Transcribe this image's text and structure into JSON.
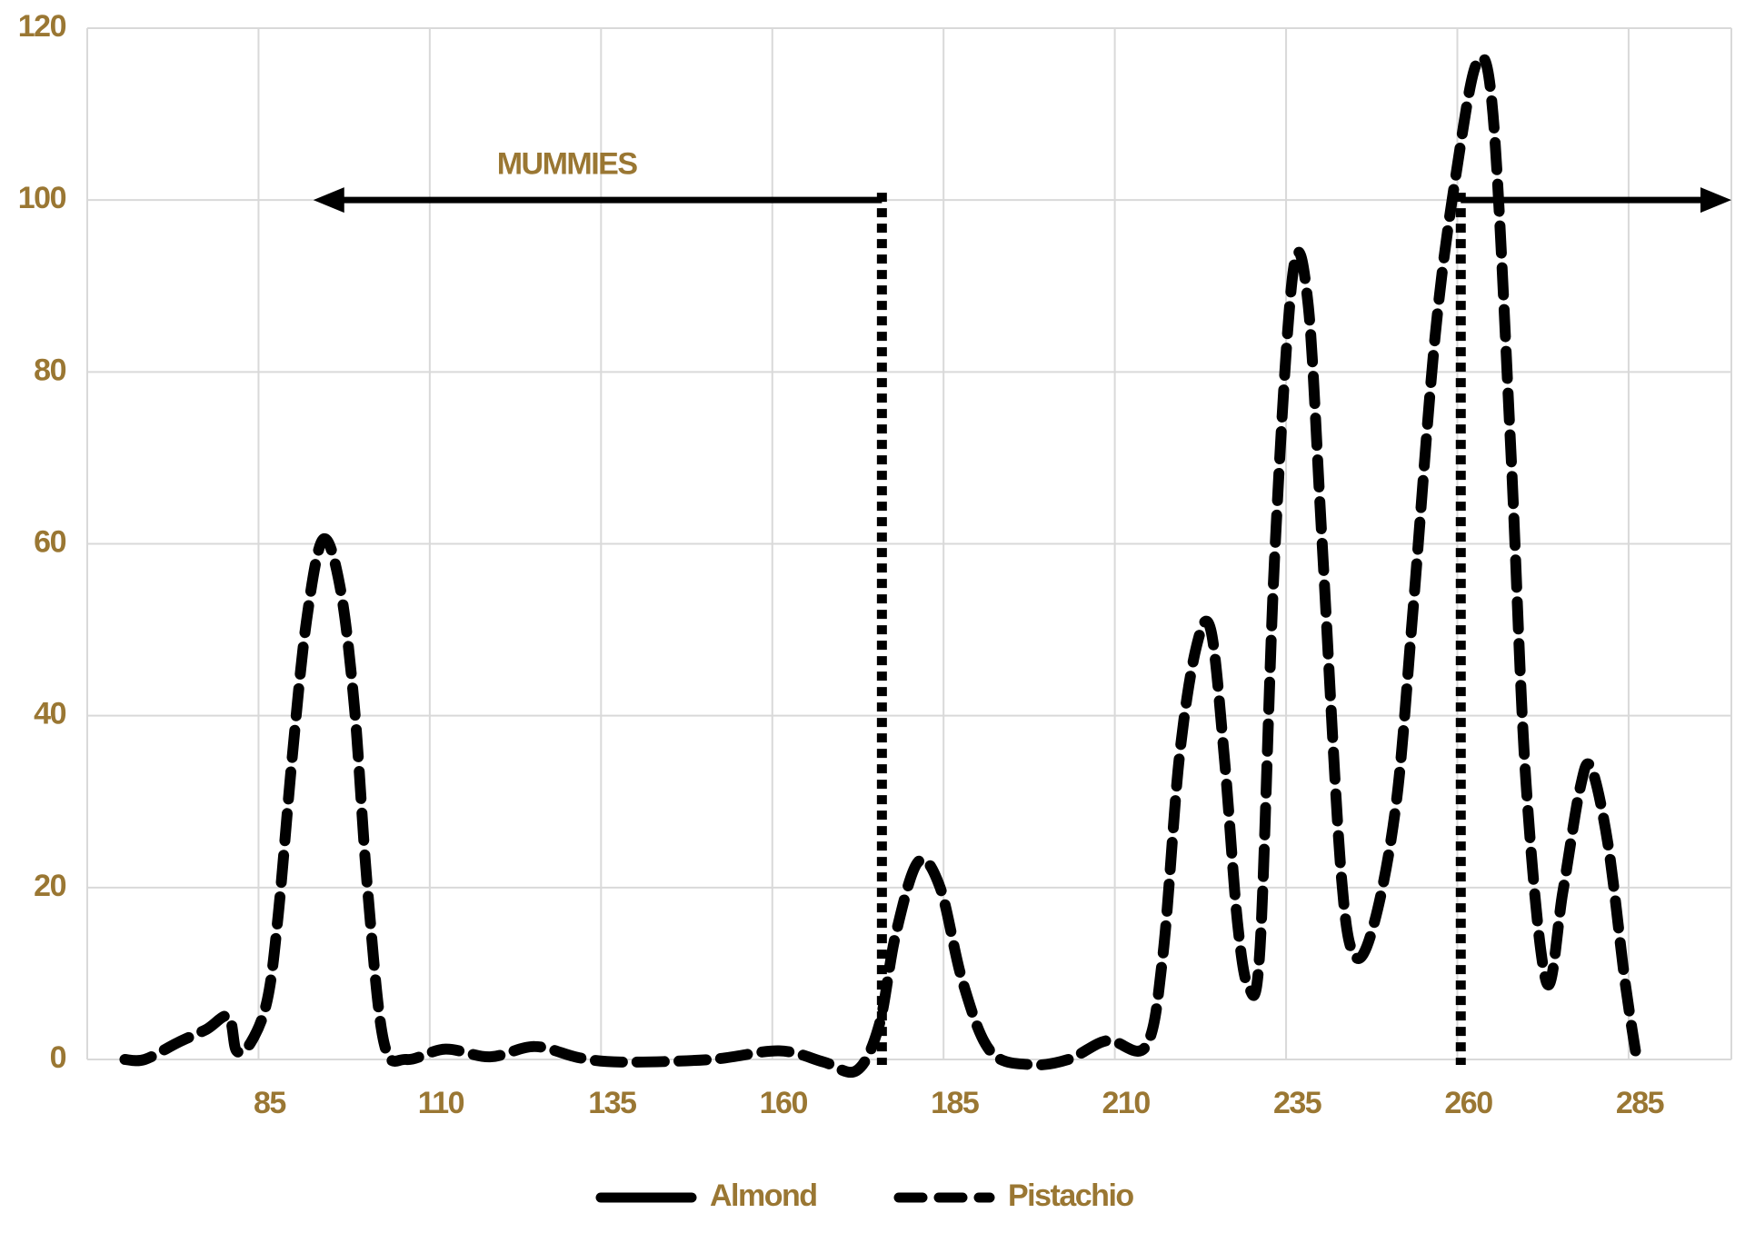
{
  "chart_data": {
    "type": "line",
    "x": [
      65.5,
      68.4,
      73.3,
      77.4,
      80.6,
      81.8,
      83.9,
      86.3,
      87.9,
      89.9,
      92,
      94.4,
      96.9,
      99,
      100.9,
      103.3,
      106.6,
      112.3,
      118.8,
      125.3,
      131.8,
      138,
      151,
      161,
      167.5,
      172.3,
      175.6,
      178,
      181.3,
      184.5,
      187.8,
      191.8,
      197.5,
      203.2,
      208.9,
      214.5,
      217,
      219.4,
      221.9,
      224,
      226,
      227.9,
      229.5,
      231.2,
      233.3,
      236,
      238.2,
      240.2,
      243,
      245.1,
      247.9,
      251.1,
      253.5,
      256.8,
      260,
      262.9,
      265.2,
      267.8,
      270,
      273,
      275.4,
      277.9,
      279.5,
      282,
      284.4,
      286
    ],
    "series": [
      {
        "name": "Almond",
        "color": "#000000",
        "style": "solid",
        "values": [
          null,
          null,
          null,
          null,
          null,
          null,
          null,
          null,
          null,
          null,
          null,
          null,
          null,
          null,
          null,
          null,
          null,
          null,
          null,
          null,
          null,
          null,
          null,
          null,
          null,
          null,
          null,
          null,
          null,
          null,
          null,
          null,
          null,
          null,
          null,
          null,
          null,
          null,
          null,
          null,
          null,
          null,
          null,
          null,
          null,
          null,
          null,
          null,
          null,
          null,
          null,
          null,
          null,
          null,
          null,
          null,
          null,
          null,
          null,
          null,
          null,
          null,
          null,
          null,
          null,
          null
        ]
      },
      {
        "name": "Pistachio",
        "color": "#000000",
        "style": "dashed",
        "values": [
          0,
          0,
          2,
          3.5,
          5,
          1,
          2,
          7,
          17,
          35,
          51,
          60.5,
          55,
          41,
          20,
          2,
          0,
          1.2,
          0.3,
          1.5,
          0.2,
          -0.3,
          0,
          1,
          -0.3,
          -1.3,
          4,
          14.5,
          23,
          20,
          9,
          1,
          -0.6,
          0,
          2.2,
          1.5,
          12,
          35,
          48,
          50,
          35,
          16,
          8.5,
          13,
          58,
          91.5,
          88,
          61,
          22,
          12,
          16,
          30,
          52,
          84.5,
          104,
          116,
          110,
          71,
          32.5,
          9,
          19.5,
          31.5,
          34,
          25,
          9.5,
          1
        ]
      }
    ],
    "xlim": [
      60,
      300
    ],
    "xticks": [
      85,
      110,
      135,
      160,
      185,
      210,
      235,
      260,
      285
    ],
    "ylim": [
      0,
      120
    ],
    "yticks": [
      0,
      20,
      40,
      60,
      80,
      100,
      120
    ],
    "grid": true,
    "legend": "bottom",
    "vlines": [
      176,
      260.5
    ],
    "arrows": [
      {
        "from": 176,
        "to": 93,
        "y": 100
      },
      {
        "from": 260.5,
        "to": 300,
        "y": 100
      }
    ],
    "annotations": [
      {
        "text": "MUMMIES",
        "x": 130,
        "y": 104
      }
    ]
  }
}
